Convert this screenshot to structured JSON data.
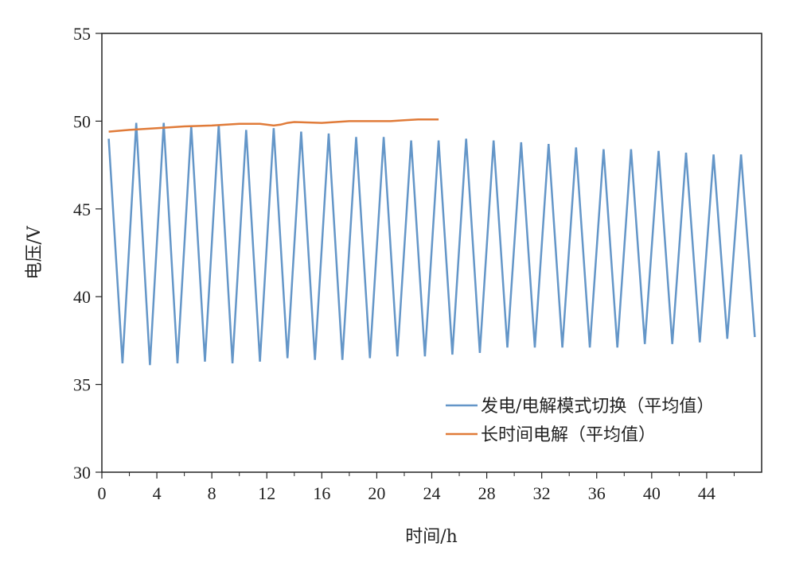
{
  "chart_data": {
    "type": "line",
    "xlabel": "时间/h",
    "ylabel": "电压/V",
    "xlim": [
      0,
      48
    ],
    "ylim": [
      30,
      55
    ],
    "xticks": [
      0,
      4,
      8,
      12,
      16,
      20,
      24,
      28,
      32,
      36,
      40,
      44
    ],
    "yticks": [
      30,
      35,
      40,
      45,
      50,
      55
    ],
    "grid": false,
    "legend_position": "bottom-right",
    "series": [
      {
        "name": "发电/电解模式切换（平均值）",
        "color": "#6496c8",
        "x": [
          0.5,
          1.5,
          2.5,
          3.5,
          4.5,
          5.5,
          6.5,
          7.5,
          8.5,
          9.5,
          10.5,
          11.5,
          12.5,
          13.5,
          14.5,
          15.5,
          16.5,
          17.5,
          18.5,
          19.5,
          20.5,
          21.5,
          22.5,
          23.5,
          24.5,
          25.5,
          26.5,
          27.5,
          28.5,
          29.5,
          30.5,
          31.5,
          32.5,
          33.5,
          34.5,
          35.5,
          36.5,
          37.5,
          38.5,
          39.5,
          40.5,
          41.5,
          42.5,
          43.5,
          44.5,
          45.5,
          46.5,
          47.5
        ],
        "y": [
          49.0,
          36.2,
          49.9,
          36.1,
          49.9,
          36.2,
          49.7,
          36.3,
          49.8,
          36.2,
          49.5,
          36.3,
          49.6,
          36.5,
          49.4,
          36.4,
          49.3,
          36.4,
          49.1,
          36.5,
          49.1,
          36.6,
          48.9,
          36.6,
          48.9,
          36.7,
          49.0,
          36.8,
          48.9,
          37.1,
          48.8,
          37.1,
          48.7,
          37.1,
          48.5,
          37.1,
          48.4,
          37.1,
          48.4,
          37.3,
          48.3,
          37.3,
          48.2,
          37.4,
          48.1,
          37.6,
          48.1,
          37.7
        ]
      },
      {
        "name": "长时间电解（平均值）",
        "color": "#e07b39",
        "x": [
          0.5,
          2,
          4,
          6,
          8,
          10,
          11.5,
          12.5,
          13,
          13.5,
          14,
          16,
          17,
          18,
          19,
          21,
          22,
          23,
          24.5
        ],
        "y": [
          49.4,
          49.5,
          49.6,
          49.7,
          49.75,
          49.85,
          49.85,
          49.75,
          49.8,
          49.9,
          49.95,
          49.9,
          49.95,
          50.0,
          50.0,
          50.0,
          50.05,
          50.1,
          50.1
        ]
      }
    ]
  }
}
